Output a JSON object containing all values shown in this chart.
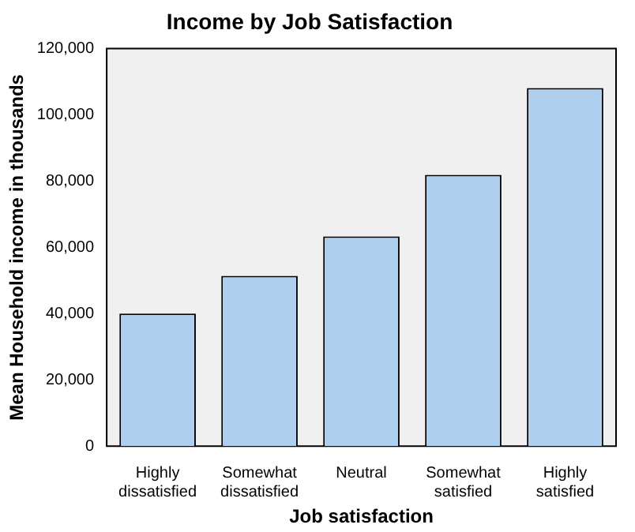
{
  "chart_data": {
    "type": "bar",
    "title": "Income by Job Satisfaction",
    "xlabel": "Job satisfaction",
    "ylabel": "Mean Household income in thousands",
    "categories": [
      "Highly dissatisfied",
      "Somewhat dissatisfied",
      "Neutral",
      "Somewhat satisfied",
      "Highly satisfied"
    ],
    "values": [
      40000,
      51400,
      63300,
      81900,
      108100
    ],
    "color": "#aed0ee",
    "ylim": [
      0,
      120000
    ],
    "yticks": [
      {
        "value": 0,
        "label": "0"
      },
      {
        "value": 20000,
        "label": "20,000"
      },
      {
        "value": 40000,
        "label": "40,000"
      },
      {
        "value": 60000,
        "label": "60,000"
      },
      {
        "value": 80000,
        "label": "80,000"
      },
      {
        "value": 100000,
        "label": "100,000"
      },
      {
        "value": 120000,
        "label": "120,000"
      }
    ],
    "grid": false,
    "legend": false
  }
}
